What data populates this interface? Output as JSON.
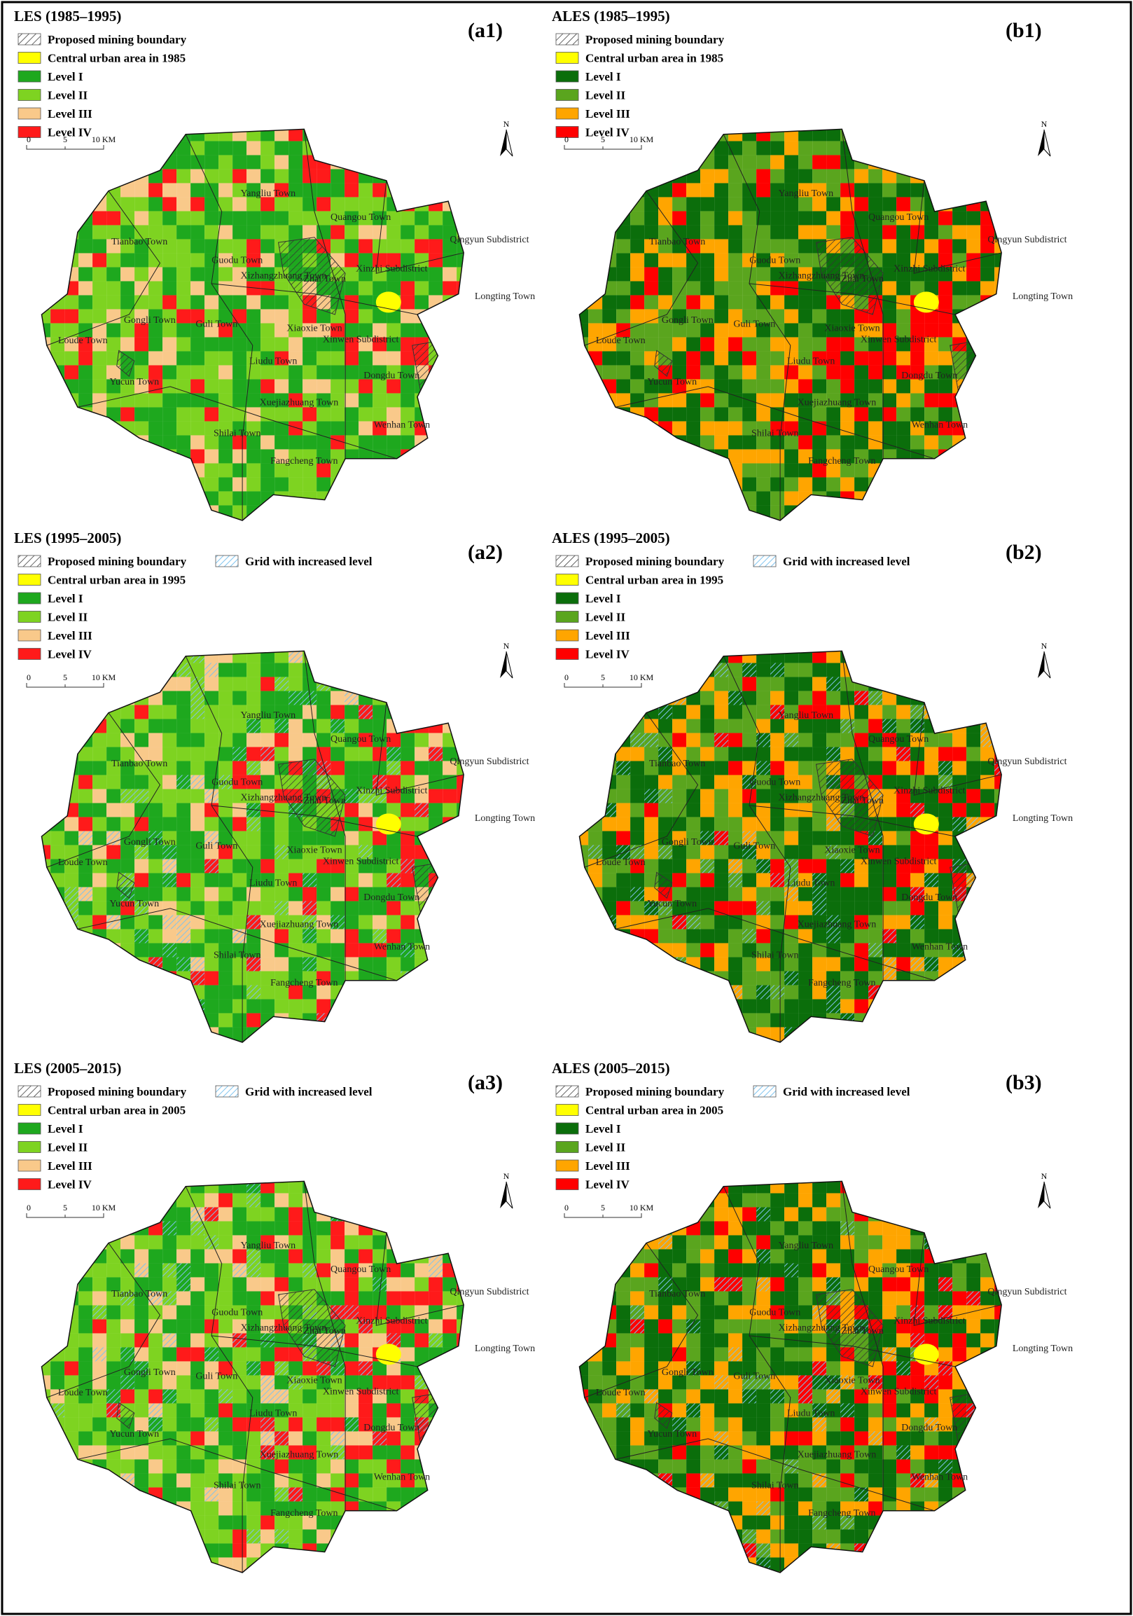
{
  "panels": [
    {
      "title": "LES (1985–1995)",
      "tag": "(a1)",
      "north": "N",
      "scale": [
        "0",
        "5",
        "10 KM"
      ],
      "legend": [
        {
          "label": "Proposed mining boundary",
          "hatch": "#333333"
        },
        {
          "label": "Central urban area in 1985",
          "color": "#ffff00"
        },
        {
          "label": "Level I",
          "color": "#1ea81e"
        },
        {
          "label": "Level II",
          "color": "#7ed321"
        },
        {
          "label": "Level III",
          "color": "#f9c98a"
        },
        {
          "label": "Level IV",
          "color": "#ff1a1a"
        }
      ]
    },
    {
      "title": "ALES (1985–1995)",
      "tag": "(b1)",
      "north": "N",
      "scale": [
        "0",
        "5",
        "10 KM"
      ],
      "legend": [
        {
          "label": "Proposed mining boundary",
          "hatch": "#333333"
        },
        {
          "label": "Central urban area in 1985",
          "color": "#ffff00"
        },
        {
          "label": "Level I",
          "color": "#0b6e0b"
        },
        {
          "label": "Level II",
          "color": "#5aa51e"
        },
        {
          "label": "Level III",
          "color": "#ffa500"
        },
        {
          "label": "Level IV",
          "color": "#ff0000"
        }
      ]
    },
    {
      "title": "LES (1995–2005)",
      "tag": "(a2)",
      "north": "N",
      "scale": [
        "0",
        "5",
        "10 KM"
      ],
      "legend": [
        {
          "label": "Proposed mining boundary",
          "hatch": "#333333"
        },
        {
          "label": "Grid with increased level",
          "hatch": "#4aa8d8"
        },
        {
          "label": "Central urban area in 1995",
          "color": "#ffff00"
        },
        {
          "label": "Level I",
          "color": "#1ea81e"
        },
        {
          "label": "Level II",
          "color": "#7ed321"
        },
        {
          "label": "Level III",
          "color": "#f9c98a"
        },
        {
          "label": "Level IV",
          "color": "#ff1a1a"
        }
      ]
    },
    {
      "title": "ALES (1995–2005)",
      "tag": "(b2)",
      "north": "N",
      "scale": [
        "0",
        "5",
        "10 KM"
      ],
      "legend": [
        {
          "label": "Proposed mining boundary",
          "hatch": "#333333"
        },
        {
          "label": "Grid with increased level",
          "hatch": "#4aa8d8"
        },
        {
          "label": "Central urban area in 1995",
          "color": "#ffff00"
        },
        {
          "label": "Level I",
          "color": "#0b6e0b"
        },
        {
          "label": "Level II",
          "color": "#5aa51e"
        },
        {
          "label": "Level III",
          "color": "#ffa500"
        },
        {
          "label": "Level IV",
          "color": "#ff0000"
        }
      ]
    },
    {
      "title": "LES (2005–2015)",
      "tag": "(a3)",
      "north": "N",
      "scale": [
        "0",
        "5",
        "10 KM"
      ],
      "legend": [
        {
          "label": "Proposed mining boundary",
          "hatch": "#333333"
        },
        {
          "label": "Grid with increased level",
          "hatch": "#4aa8d8"
        },
        {
          "label": "Central urban area in 2005",
          "color": "#ffff00"
        },
        {
          "label": "Level I",
          "color": "#1ea81e"
        },
        {
          "label": "Level II",
          "color": "#7ed321"
        },
        {
          "label": "Level III",
          "color": "#f9c98a"
        },
        {
          "label": "Level IV",
          "color": "#ff1a1a"
        }
      ]
    },
    {
      "title": "ALES (2005–2015)",
      "tag": "(b3)",
      "north": "N",
      "scale": [
        "0",
        "5",
        "10 KM"
      ],
      "legend": [
        {
          "label": "Proposed mining boundary",
          "hatch": "#333333"
        },
        {
          "label": "Grid with increased level",
          "hatch": "#4aa8d8"
        },
        {
          "label": "Central urban area in 2005",
          "color": "#ffff00"
        },
        {
          "label": "Level I",
          "color": "#0b6e0b"
        },
        {
          "label": "Level II",
          "color": "#5aa51e"
        },
        {
          "label": "Level III",
          "color": "#ffa500"
        },
        {
          "label": "Level IV",
          "color": "#ff0000"
        }
      ]
    }
  ],
  "towns": [
    "Yangliu Town",
    "Quangou Town",
    "Qingyun Subdistrict",
    "Tianbao Town",
    "Guodu Town",
    "Xizhangzhuang Town",
    "Xinzhi Subdistrict",
    "Zhai Town",
    "Longting Town",
    "Gongli Town",
    "Loude Town",
    "Guli Town",
    "Xiaoxie Town",
    "Xinwen Subdistrict",
    "Liudu Town",
    "Dongdu Town",
    "Yucun Town",
    "Xuejiazhuang Town",
    "Wenhan Town",
    "Shilai Town",
    "Fangcheng Town"
  ]
}
